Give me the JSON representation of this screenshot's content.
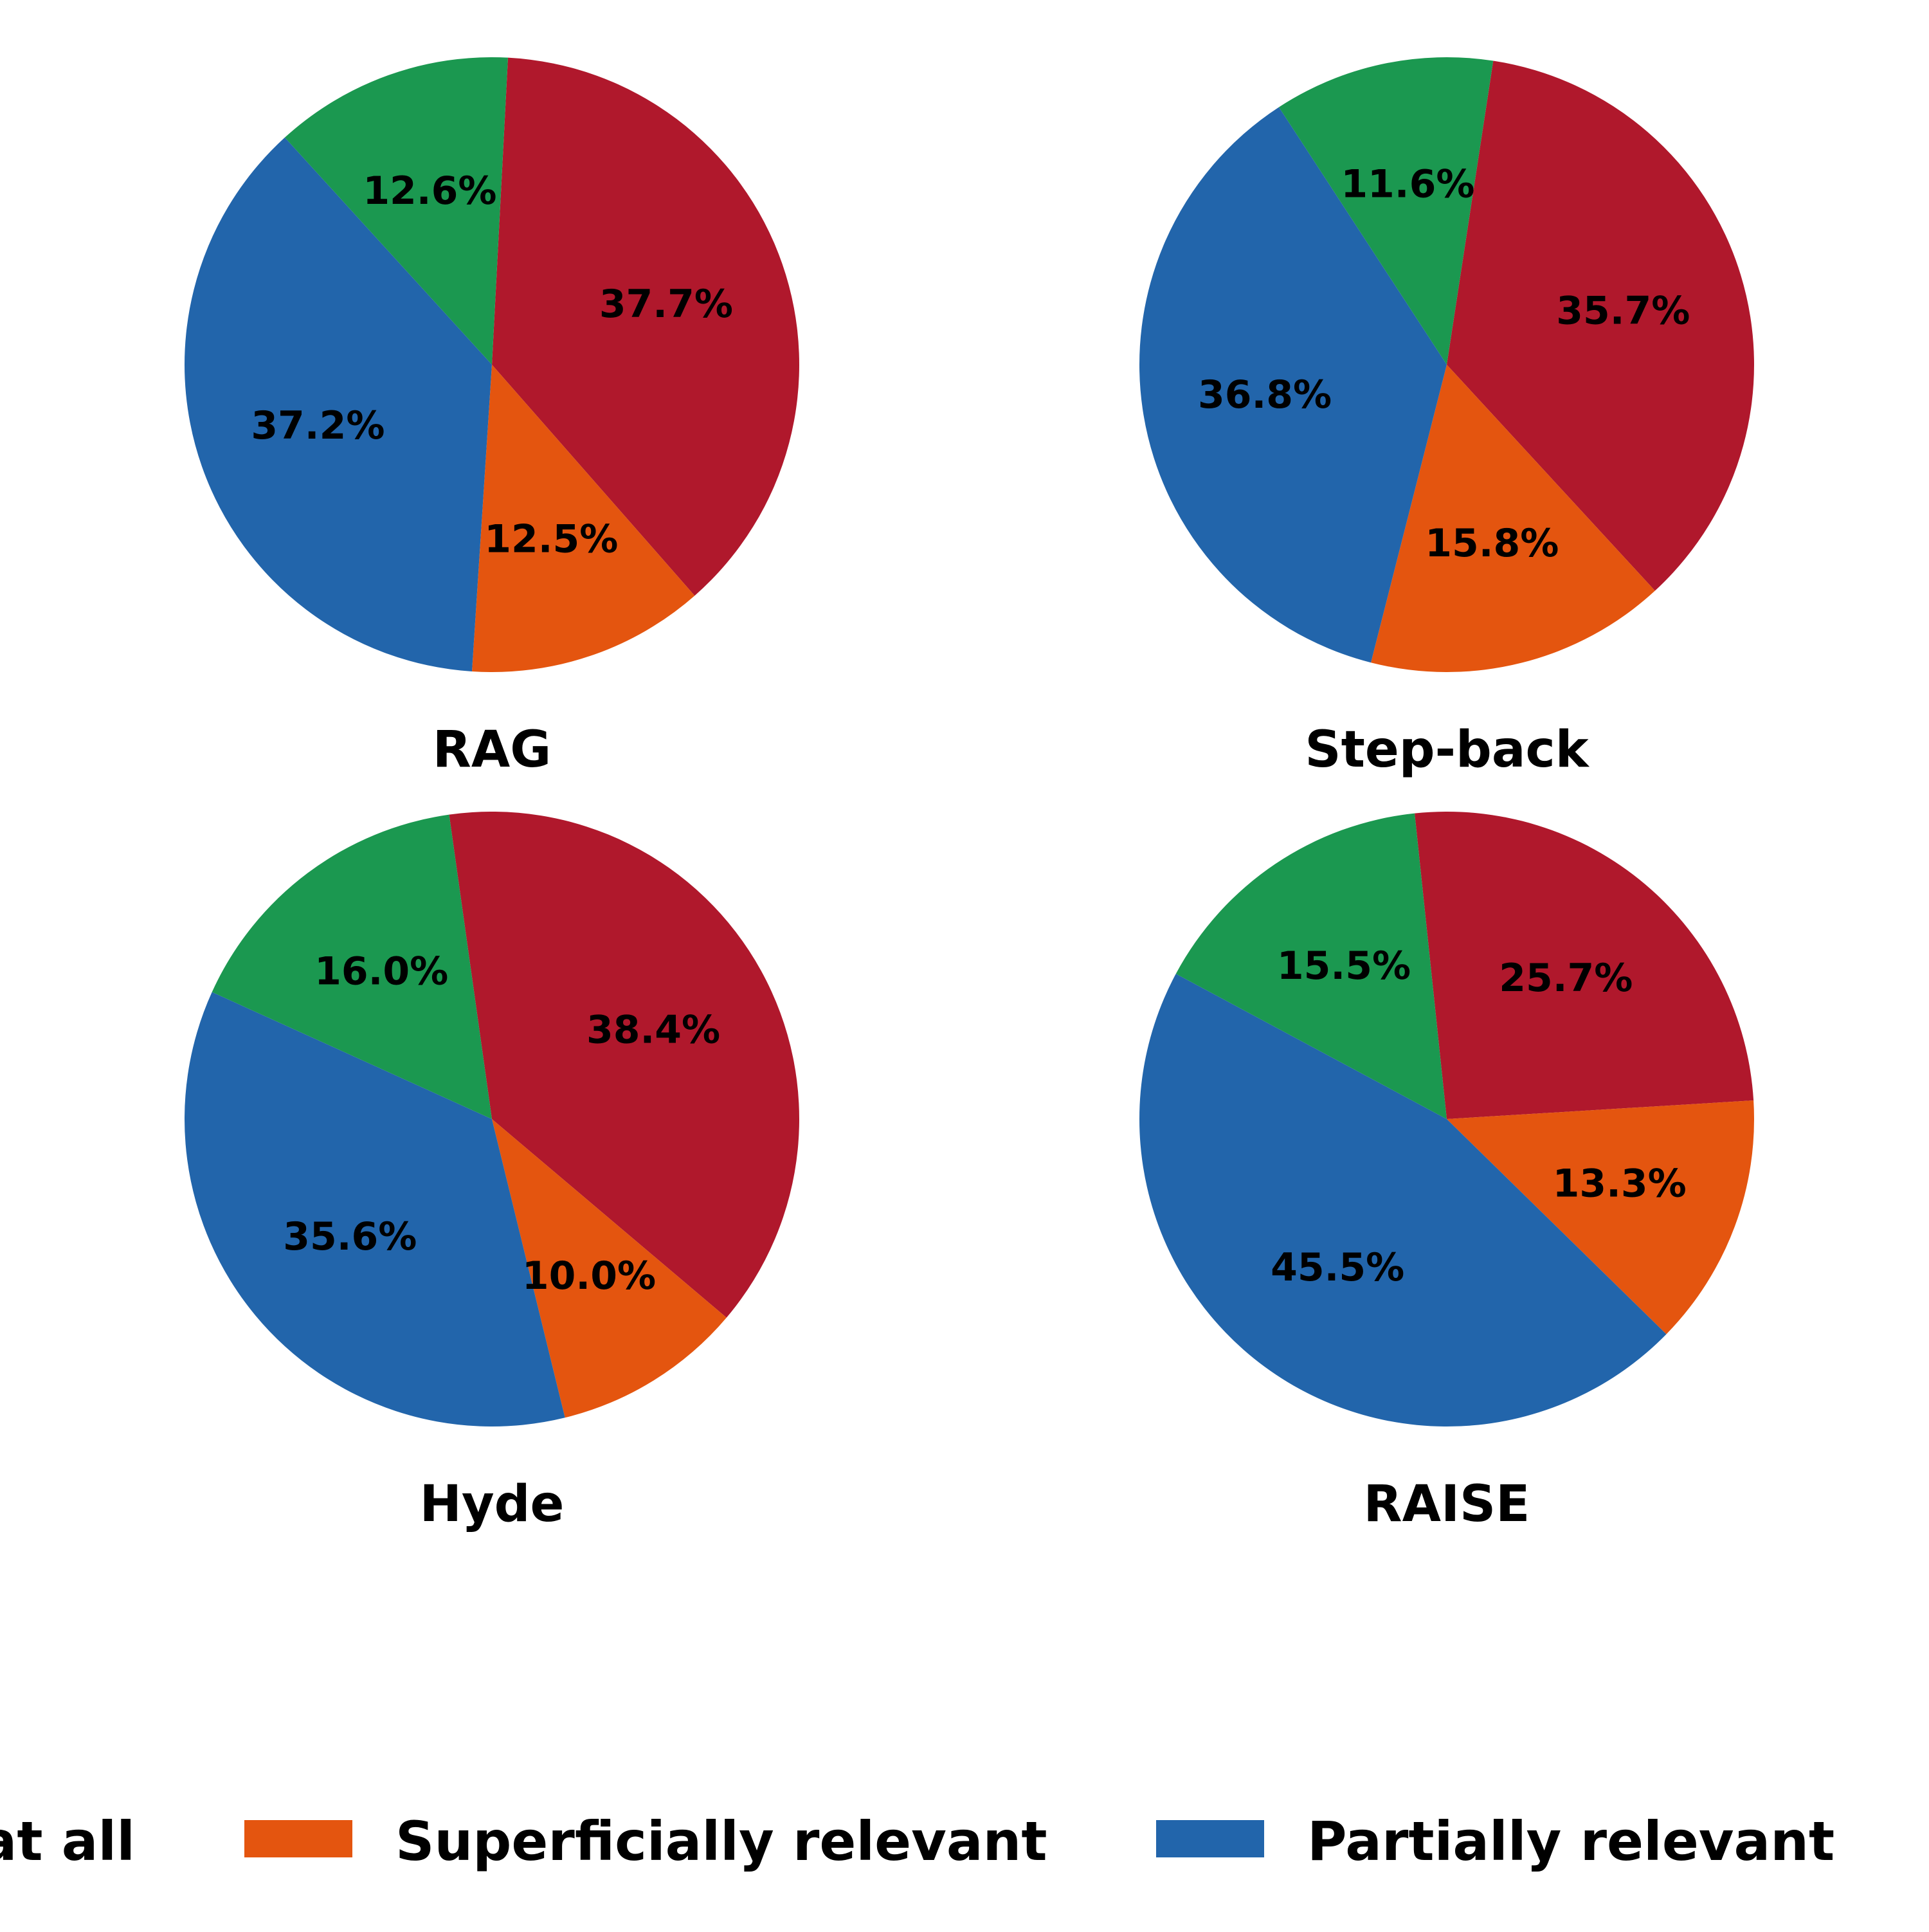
{
  "legend": {
    "placement": "bottom, single row, clipped at left edge",
    "items": [
      {
        "label": "at all",
        "color": "#1b9850",
        "swatch_visible": false
      },
      {
        "label": "Superficially relevant",
        "color": "#e4550f",
        "swatch_visible": true
      },
      {
        "label": "Partially relevant",
        "color": "#2265ab",
        "swatch_visible": true
      }
    ]
  },
  "chart_data": [
    {
      "type": "pie",
      "title": "RAG",
      "start_angle_deg": 3,
      "direction": "clockwise",
      "slices": [
        {
          "color": "#b0182c",
          "value": 37.7,
          "label": "37.7%"
        },
        {
          "color": "#e4550f",
          "value": 12.5,
          "label": "12.5%"
        },
        {
          "color": "#2265ab",
          "value": 37.2,
          "label": "37.2%"
        },
        {
          "color": "#1b9850",
          "value": 12.6,
          "label": "12.6%"
        }
      ]
    },
    {
      "type": "pie",
      "title": "Step-back",
      "start_angle_deg": 8.7,
      "direction": "clockwise",
      "slices": [
        {
          "color": "#b0182c",
          "value": 35.7,
          "label": "35.7%"
        },
        {
          "color": "#e4550f",
          "value": 15.8,
          "label": "15.8%"
        },
        {
          "color": "#2265ab",
          "value": 36.8,
          "label": "36.8%"
        },
        {
          "color": "#1b9850",
          "value": 11.6,
          "label": "11.6%"
        }
      ]
    },
    {
      "type": "pie",
      "title": "Hyde",
      "start_angle_deg": -8,
      "direction": "clockwise",
      "slices": [
        {
          "color": "#b0182c",
          "value": 38.4,
          "label": "38.4%"
        },
        {
          "color": "#e4550f",
          "value": 10.0,
          "label": "10.0%"
        },
        {
          "color": "#2265ab",
          "value": 35.6,
          "label": "35.6%"
        },
        {
          "color": "#1b9850",
          "value": 16.0,
          "label": "16.0%"
        }
      ]
    },
    {
      "type": "pie",
      "title": "RAISE",
      "start_angle_deg": -6,
      "direction": "clockwise",
      "slices": [
        {
          "color": "#b0182c",
          "value": 25.7,
          "label": "25.7%"
        },
        {
          "color": "#e4550f",
          "value": 13.3,
          "label": "13.3%"
        },
        {
          "color": "#2265ab",
          "value": 45.5,
          "label": "45.5%"
        },
        {
          "color": "#1b9850",
          "value": 15.5,
          "label": "15.5%"
        }
      ]
    }
  ]
}
